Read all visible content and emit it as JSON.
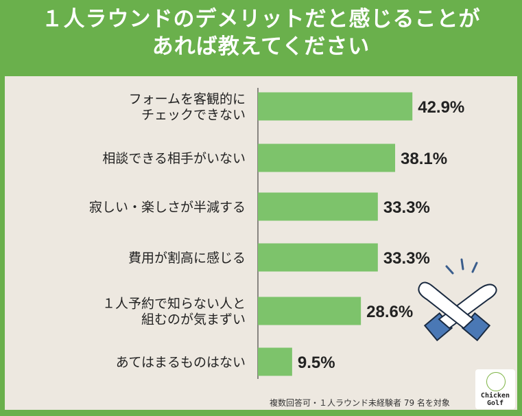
{
  "title_line1": "１人ラウンドのデメリットだと感じることが",
  "title_line2": "あれば教えてください",
  "footnote": "複数回答可・１人ラウンド未経験者 79 名を対象",
  "logo": {
    "line1": "Chicken",
    "line2": "Golf"
  },
  "colors": {
    "bar": "#7dc36b",
    "background": "#6ab04c",
    "panel": "#ede8e0"
  },
  "chart_data": {
    "type": "bar",
    "orientation": "horizontal",
    "unit": "%",
    "categories": [
      [
        "フォームを客観的に",
        "チェックできない"
      ],
      [
        "相談できる相手がいない"
      ],
      [
        "寂しい・楽しさが半減する"
      ],
      [
        "費用が割高に感じる"
      ],
      [
        "１人予約で知らない人と",
        "組むのが気まずい"
      ],
      [
        "あてはまるものはない"
      ]
    ],
    "values": [
      42.9,
      38.1,
      33.3,
      33.3,
      28.6,
      9.5
    ],
    "value_labels": [
      "42.9%",
      "38.1%",
      "33.3%",
      "33.3%",
      "28.6%",
      "9.5%"
    ]
  }
}
